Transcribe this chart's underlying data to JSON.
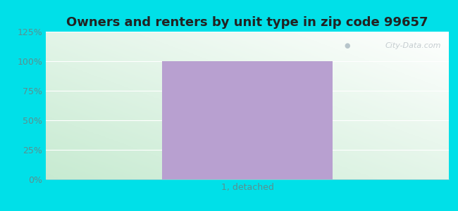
{
  "title": "Owners and renters by unit type in zip code 99657",
  "categories": [
    "1, detached"
  ],
  "values": [
    100
  ],
  "bar_color": "#b8a0d0",
  "ylim_max": 125,
  "yticks": [
    0,
    25,
    50,
    75,
    100,
    125
  ],
  "ytick_labels": [
    "0%",
    "25%",
    "50%",
    "75%",
    "100%",
    "125%"
  ],
  "title_fontsize": 13,
  "tick_fontsize": 9,
  "tick_color": "#5a9090",
  "outer_bg_color": "#00e0e8",
  "plot_bg_top_color": "#f5fff5",
  "plot_bg_bottom_color": "#c8ead0",
  "watermark_text": "City-Data.com",
  "bar_width": 0.55,
  "xlim": [
    -0.65,
    0.65
  ]
}
